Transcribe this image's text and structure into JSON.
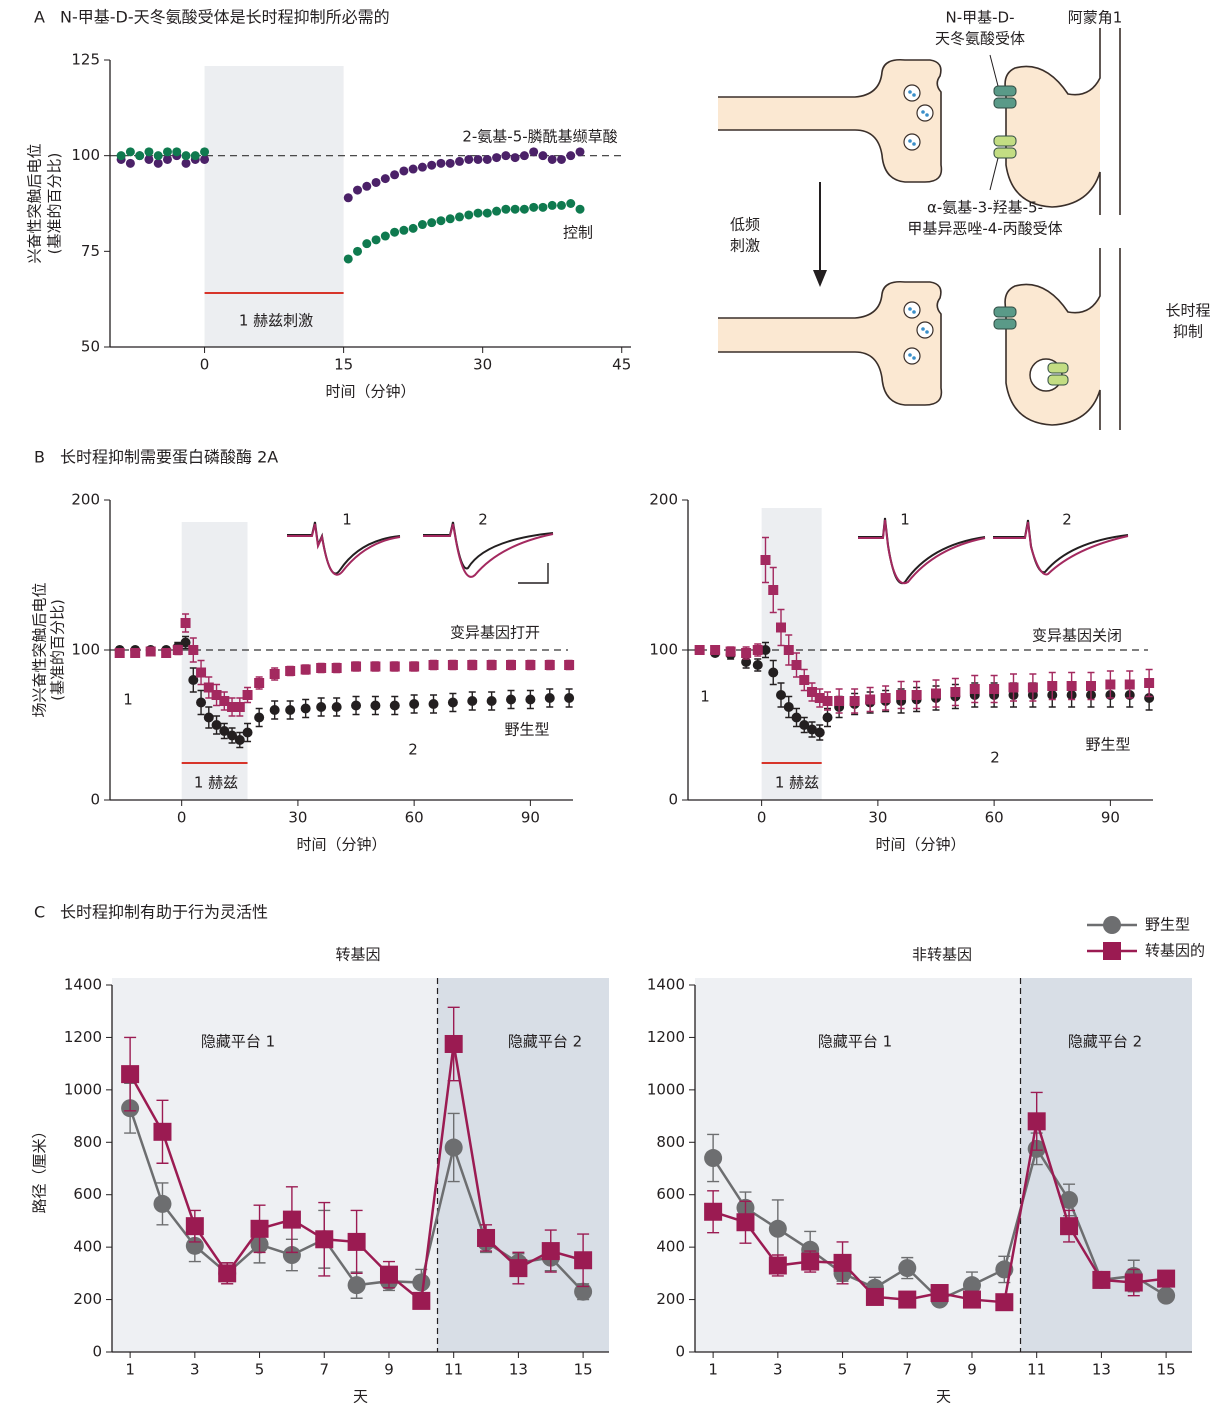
{
  "panels": [
    {
      "letter": "A",
      "title": "N-甲基-D-天冬氨酸受体是长时程抑制所必需的"
    },
    {
      "letter": "B",
      "title": "长时程抑制需要蛋白磷酸酶 2A"
    },
    {
      "letter": "C",
      "title": "长时程抑制有助于行为灵活性"
    }
  ],
  "diagram": {
    "nmda_label": [
      "N-甲基-D-",
      "天冬氨酸受体"
    ],
    "region": "阿蒙角1",
    "stimulus": [
      "低频",
      "刺激"
    ],
    "ampa_label": [
      "α-氨基-3-羟基-5-",
      "甲基异恶唑-4-丙酸受体"
    ],
    "outcome": [
      "长时程",
      "抑制"
    ]
  },
  "chart_data": [
    {
      "type": "scatter",
      "x_label": "时间（分钟）",
      "y_label": [
        "兴奋性突触后电位",
        "(基准的百分比)"
      ],
      "xlim": [
        -10.2,
        46
      ],
      "ylim": [
        50,
        125
      ],
      "xticks": [
        0,
        15,
        30,
        45
      ],
      "yticks": [
        50,
        75,
        100,
        125
      ],
      "stim": [
        0,
        15
      ],
      "reference": 100,
      "annotations": [
        "1 赫兹刺激"
      ],
      "x": [
        -9,
        -8,
        -7,
        -6,
        -5,
        -4,
        -3,
        -2,
        -1,
        0,
        15.5,
        16.5,
        17.5,
        18.5,
        19.5,
        20.5,
        21.5,
        22.5,
        23.5,
        24.5,
        25.5,
        26.5,
        27.5,
        28.5,
        29.5,
        30.5,
        31.5,
        32.5,
        33.5,
        34.5,
        35.5,
        36.5,
        37.5,
        38.5,
        39.5,
        40.5
      ],
      "series": [
        {
          "name": "2-氨基-5-膦酰基缬草酸",
          "color": "#4b2168",
          "marker": "circle",
          "values": [
            99,
            98,
            100,
            99,
            98,
            99,
            100,
            98,
            99,
            99,
            89,
            91,
            92,
            93,
            94,
            95,
            96,
            96.5,
            97,
            97.5,
            98,
            98,
            98.5,
            99,
            99,
            99,
            99.5,
            100,
            99.5,
            100,
            101,
            100,
            99,
            99,
            100,
            101
          ]
        },
        {
          "name": "控制",
          "color": "#0f7a4f",
          "marker": "circle",
          "values": [
            100,
            101,
            100,
            101,
            100,
            101,
            101,
            100,
            100,
            101,
            73,
            75,
            77,
            78,
            79,
            80,
            80.5,
            81,
            82,
            82.5,
            83,
            83.5,
            84,
            84.5,
            85,
            85,
            85.5,
            86,
            86,
            86,
            86.5,
            86.5,
            87,
            87,
            87.5,
            86
          ]
        }
      ]
    },
    {
      "type": "line",
      "lines": false,
      "x_label": "时间（分钟）",
      "y_label": [
        "场兴奋性突触后电位",
        "(基准的百分比)"
      ],
      "xlim": [
        -18.5,
        101
      ],
      "ylim": [
        0,
        200
      ],
      "xticks": [
        0,
        30,
        60,
        90
      ],
      "yticks": [
        0,
        100,
        200
      ],
      "stim": [
        0,
        17
      ],
      "reference": 100,
      "annotations": [
        "1",
        "2",
        "1 赫兹"
      ],
      "inset_labels": [
        "1",
        "2"
      ],
      "x": [
        -16,
        -12,
        -8,
        -4,
        -1,
        1,
        3,
        5,
        7,
        9,
        11,
        13,
        15,
        17,
        20,
        24,
        28,
        32,
        36,
        40,
        45,
        50,
        55,
        60,
        65,
        70,
        75,
        80,
        85,
        90,
        95,
        100
      ],
      "series": [
        {
          "name": "野生型",
          "color": "#231f20",
          "marker": "circle",
          "values": [
            100,
            100,
            100,
            100,
            102,
            105,
            80,
            65,
            55,
            50,
            46,
            43,
            40,
            45,
            55,
            60,
            60,
            61,
            62,
            62,
            63,
            63,
            63,
            64,
            64,
            65,
            66,
            66,
            67,
            67,
            68,
            68
          ],
          "errors": [
            2,
            2,
            2,
            2,
            3,
            4,
            8,
            8,
            7,
            6,
            5,
            5,
            5,
            6,
            6,
            6,
            6,
            6,
            6,
            6,
            6,
            6,
            6,
            6,
            6,
            6,
            6,
            6,
            6,
            6,
            6,
            6
          ]
        },
        {
          "name": "变异基因打开",
          "color": "#a3295f",
          "marker": "square",
          "values": [
            98,
            98,
            99,
            98,
            100,
            118,
            100,
            85,
            75,
            70,
            66,
            62,
            62,
            70,
            78,
            84,
            86,
            87,
            88,
            88,
            89,
            89,
            89,
            89,
            90,
            90,
            90,
            90,
            90,
            90,
            90,
            90
          ],
          "errors": [
            2,
            2,
            2,
            2,
            3,
            6,
            8,
            8,
            7,
            7,
            6,
            6,
            6,
            5,
            4,
            4,
            3,
            3,
            3,
            3,
            3,
            3,
            3,
            3,
            3,
            3,
            3,
            3,
            3,
            3,
            3,
            3
          ]
        }
      ]
    },
    {
      "type": "line",
      "lines": false,
      "x_label": "时间（分钟）",
      "xlim": [
        -19,
        101
      ],
      "ylim": [
        0,
        200
      ],
      "xticks": [
        0,
        30,
        60,
        90
      ],
      "yticks": [
        0,
        100,
        200
      ],
      "stim": [
        0,
        15.5
      ],
      "reference": 100,
      "annotations": [
        "1",
        "2",
        "1 赫兹"
      ],
      "inset_labels": [
        "1",
        "2"
      ],
      "x": [
        -16,
        -12,
        -8,
        -4,
        -1,
        1,
        3,
        5,
        7,
        9,
        11,
        13,
        15,
        17,
        20,
        24,
        28,
        32,
        36,
        40,
        45,
        50,
        55,
        60,
        65,
        70,
        75,
        80,
        85,
        90,
        95,
        100
      ],
      "series": [
        {
          "name": "野生型",
          "color": "#231f20",
          "marker": "circle",
          "values": [
            100,
            98,
            97,
            92,
            90,
            100,
            85,
            70,
            62,
            55,
            50,
            47,
            45,
            55,
            62,
            64,
            65,
            66,
            66,
            67,
            68,
            69,
            70,
            70,
            70,
            70,
            70,
            70,
            70,
            70,
            70,
            68
          ],
          "errors": [
            2,
            2,
            3,
            4,
            4,
            5,
            8,
            8,
            7,
            6,
            5,
            5,
            5,
            6,
            7,
            7,
            7,
            7,
            8,
            8,
            8,
            8,
            8,
            8,
            8,
            8,
            8,
            8,
            8,
            8,
            8,
            8
          ]
        },
        {
          "name": "变异基因关闭",
          "color": "#a3295f",
          "marker": "square",
          "values": [
            100,
            100,
            99,
            98,
            100,
            160,
            140,
            115,
            100,
            90,
            80,
            72,
            68,
            66,
            66,
            66,
            67,
            68,
            70,
            70,
            71,
            72,
            74,
            74,
            75,
            75,
            76,
            76,
            76,
            77,
            77,
            78
          ],
          "errors": [
            2,
            2,
            3,
            4,
            4,
            15,
            15,
            12,
            10,
            8,
            7,
            6,
            6,
            6,
            8,
            8,
            8,
            8,
            9,
            9,
            9,
            9,
            9,
            9,
            9,
            9,
            9,
            9,
            9,
            9,
            9,
            9
          ]
        }
      ]
    },
    {
      "type": "line",
      "lines": true,
      "title": "转基因",
      "x_label": "天",
      "y_label": [
        "路径（厘米）"
      ],
      "xlim": [
        0.44,
        15.8
      ],
      "ylim": [
        0,
        1400
      ],
      "xticks": [
        1,
        3,
        5,
        7,
        9,
        11,
        13,
        15
      ],
      "yticks": [
        0,
        200,
        400,
        600,
        800,
        1000,
        1200,
        1400
      ],
      "divider": 10.5,
      "annotations": [
        "隐藏平台 1",
        "隐藏平台 2"
      ],
      "x": [
        1,
        2,
        3,
        4,
        5,
        6,
        7,
        8,
        9,
        10,
        11,
        12,
        13,
        14,
        15
      ],
      "series": [
        {
          "name": "野生型",
          "color": "#6d6e70",
          "marker": "circle",
          "values": [
            930,
            565,
            405,
            300,
            410,
            370,
            430,
            255,
            270,
            265,
            780,
            420,
            340,
            360,
            230
          ],
          "errors": [
            95,
            80,
            60,
            40,
            70,
            60,
            110,
            50,
            35,
            50,
            130,
            40,
            35,
            50,
            30
          ]
        },
        {
          "name": "转基因的",
          "color": "#9b1b52",
          "marker": "square",
          "values": [
            1060,
            840,
            480,
            300,
            470,
            505,
            430,
            420,
            295,
            195,
            1175,
            435,
            320,
            385,
            350
          ],
          "errors": [
            140,
            120,
            60,
            40,
            90,
            125,
            140,
            120,
            50,
            30,
            140,
            50,
            60,
            80,
            100
          ]
        }
      ]
    },
    {
      "type": "line",
      "lines": true,
      "title": "非转基因",
      "x_label": "天",
      "xlim": [
        0.44,
        15.8
      ],
      "ylim": [
        0,
        1400
      ],
      "xticks": [
        1,
        3,
        5,
        7,
        9,
        11,
        13,
        15
      ],
      "yticks": [
        0,
        200,
        400,
        600,
        800,
        1000,
        1200,
        1400
      ],
      "divider": 10.5,
      "annotations": [
        "隐藏平台 1",
        "隐藏平台 2"
      ],
      "x": [
        1,
        2,
        3,
        4,
        5,
        6,
        7,
        8,
        9,
        10,
        11,
        12,
        13,
        14,
        15
      ],
      "series": [
        {
          "color": "#6d6e70",
          "marker": "circle",
          "values": [
            740,
            550,
            470,
            390,
            300,
            245,
            320,
            200,
            255,
            315,
            775,
            580,
            275,
            290,
            215
          ],
          "errors": [
            90,
            60,
            110,
            70,
            30,
            40,
            40,
            20,
            50,
            50,
            60,
            60,
            30,
            60,
            20
          ]
        },
        {
          "color": "#9b1b52",
          "marker": "square",
          "values": [
            535,
            495,
            330,
            345,
            340,
            210,
            200,
            225,
            200,
            190,
            880,
            480,
            275,
            265,
            280
          ],
          "errors": [
            80,
            80,
            40,
            40,
            80,
            30,
            20,
            20,
            20,
            30,
            110,
            60,
            30,
            50,
            30
          ]
        }
      ]
    }
  ]
}
